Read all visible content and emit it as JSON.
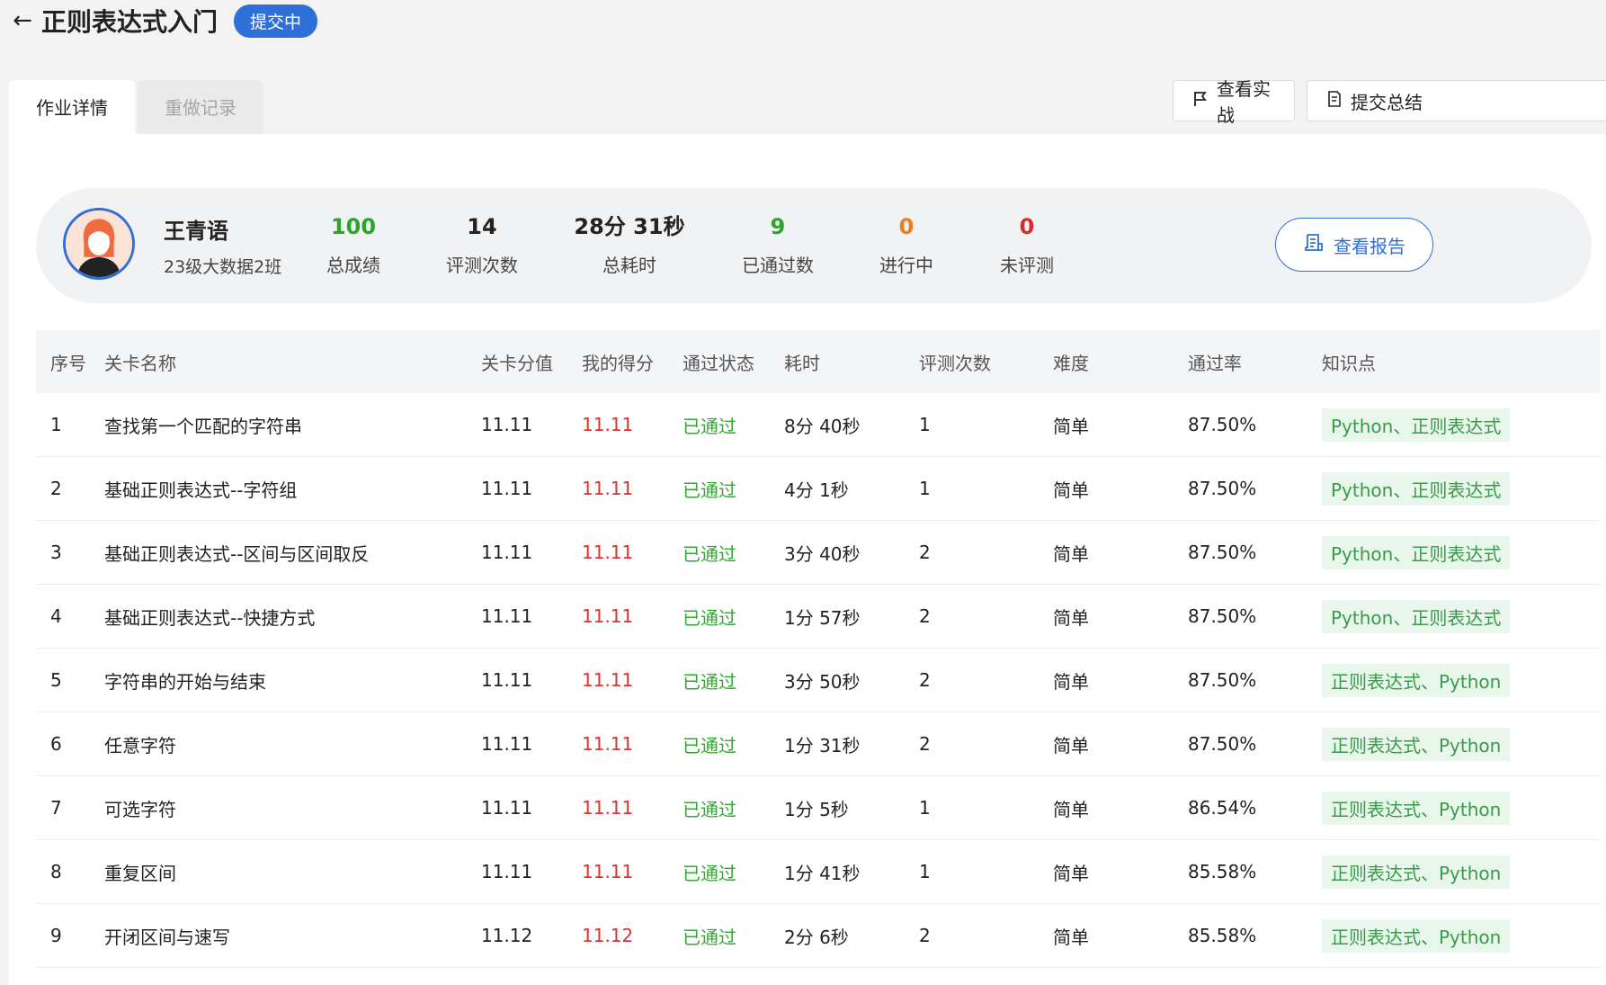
{
  "header": {
    "back_icon": "←",
    "title": "正则表达式入门",
    "badge": "提交中"
  },
  "tabs": [
    "作业详情",
    "重做记录"
  ],
  "actions": {
    "view_practice": "查看实战",
    "submit_summary": "提交总结"
  },
  "user": {
    "name": "王青语",
    "class": "23级大数据2班"
  },
  "stats": [
    {
      "value": "100",
      "label": "总成绩",
      "color": "#2aa52a"
    },
    {
      "value": "14",
      "label": "评测次数",
      "color": "#222222"
    },
    {
      "value": "28分 31秒",
      "label": "总耗时",
      "color": "#222222"
    },
    {
      "value": "9",
      "label": "已通过数",
      "color": "#2aa52a"
    },
    {
      "value": "0",
      "label": "进行中",
      "color": "#ef7b1a"
    },
    {
      "value": "0",
      "label": "未评测",
      "color": "#d92b2b"
    }
  ],
  "report_button": "查看报告",
  "table": {
    "headers": [
      "序号",
      "关卡名称",
      "关卡分值",
      "我的得分",
      "通过状态",
      "耗时",
      "评测次数",
      "难度",
      "通过率",
      "知识点"
    ],
    "rows": [
      [
        "1",
        "查找第一个匹配的字符串",
        "11.11",
        "11.11",
        "已通过",
        "8分 40秒",
        "1",
        "简单",
        "87.50%",
        "Python、正则表达式"
      ],
      [
        "2",
        "基础正则表达式--字符组",
        "11.11",
        "11.11",
        "已通过",
        "4分 1秒",
        "1",
        "简单",
        "87.50%",
        "Python、正则表达式"
      ],
      [
        "3",
        "基础正则表达式--区间与区间取反",
        "11.11",
        "11.11",
        "已通过",
        "3分 40秒",
        "2",
        "简单",
        "87.50%",
        "Python、正则表达式"
      ],
      [
        "4",
        "基础正则表达式--快捷方式",
        "11.11",
        "11.11",
        "已通过",
        "1分 57秒",
        "2",
        "简单",
        "87.50%",
        "Python、正则表达式"
      ],
      [
        "5",
        "字符串的开始与结束",
        "11.11",
        "11.11",
        "已通过",
        "3分 50秒",
        "2",
        "简单",
        "87.50%",
        "正则表达式、Python"
      ],
      [
        "6",
        "任意字符",
        "11.11",
        "11.11",
        "已通过",
        "1分 31秒",
        "2",
        "简单",
        "87.50%",
        "正则表达式、Python"
      ],
      [
        "7",
        "可选字符",
        "11.11",
        "11.11",
        "已通过",
        "1分 5秒",
        "1",
        "简单",
        "86.54%",
        "正则表达式、Python"
      ],
      [
        "8",
        "重复区间",
        "11.11",
        "11.11",
        "已通过",
        "1分 41秒",
        "1",
        "简单",
        "85.58%",
        "正则表达式、Python"
      ],
      [
        "9",
        "开闭区间与速写",
        "11.12",
        "11.12",
        "已通过",
        "2分 6秒",
        "2",
        "简单",
        "85.58%",
        "正则表达式、Python"
      ]
    ]
  }
}
